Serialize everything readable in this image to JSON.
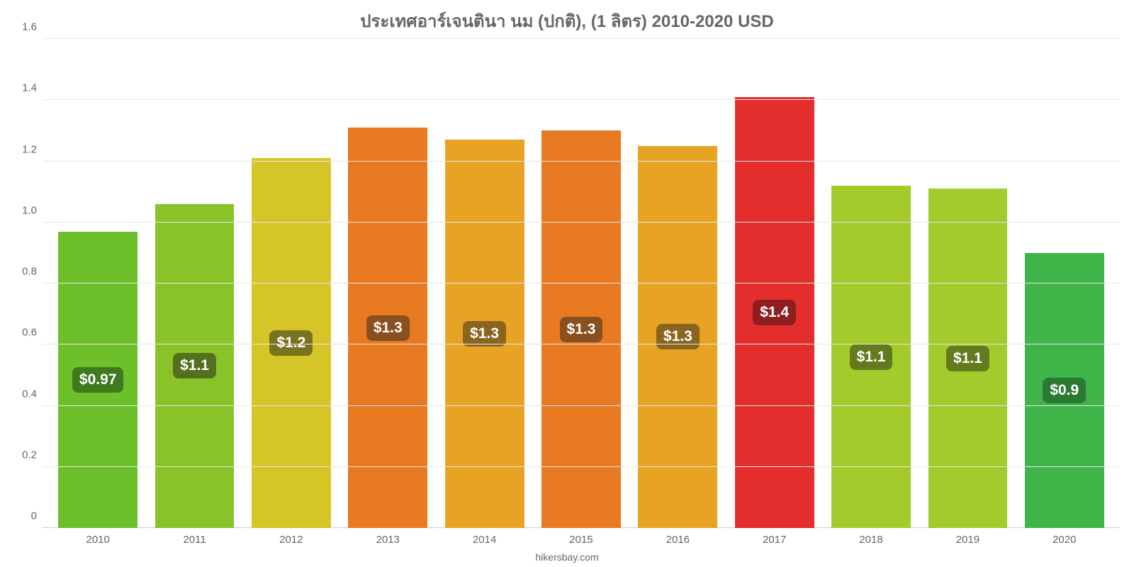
{
  "chart": {
    "type": "bar",
    "title": "ประเทศอาร์เจนตินา นม (ปกติ), (1 ลิตร) 2010-2020 USD",
    "title_fontsize": 24,
    "title_color": "#666666",
    "credit": "hikersbay.com",
    "credit_fontsize": 14,
    "credit_color": "#666666",
    "background_color": "#ffffff",
    "grid_color": "#e6e6e6",
    "axis_label_color": "#666666",
    "axis_label_fontsize": 15,
    "ylim": [
      0,
      1.6
    ],
    "yticks": [
      0,
      0.2,
      0.4,
      0.6,
      0.8,
      "1.0",
      1.2,
      1.4,
      1.6
    ],
    "bar_width": 0.82,
    "badge_fontsize": 21,
    "badge_text_color": "#ffffff",
    "badge_radius": 8,
    "categories": [
      "2010",
      "2011",
      "2012",
      "2013",
      "2014",
      "2015",
      "2016",
      "2017",
      "2018",
      "2019",
      "2020"
    ],
    "values": [
      0.97,
      1.06,
      1.21,
      1.31,
      1.27,
      1.3,
      1.25,
      1.41,
      1.12,
      1.11,
      0.9
    ],
    "value_labels": [
      "$0.97",
      "$1.1",
      "$1.2",
      "$1.3",
      "$1.3",
      "$1.3",
      "$1.3",
      "$1.4",
      "$1.1",
      "$1.1",
      "$0.9"
    ],
    "bar_colors": [
      "#6ec02a",
      "#89c32a",
      "#d6c527",
      "#e87a21",
      "#e6a324",
      "#e87a21",
      "#e6a324",
      "#e42e2e",
      "#a3cb2c",
      "#a3cb2c",
      "#3fb549"
    ],
    "badge_colors": [
      "#3f7a1e",
      "#546f1e",
      "#7a731e",
      "#8a4f1e",
      "#8a651e",
      "#8a4f1e",
      "#8a651e",
      "#8f1f1f",
      "#637a1e",
      "#637a1e",
      "#2b7a33"
    ]
  }
}
